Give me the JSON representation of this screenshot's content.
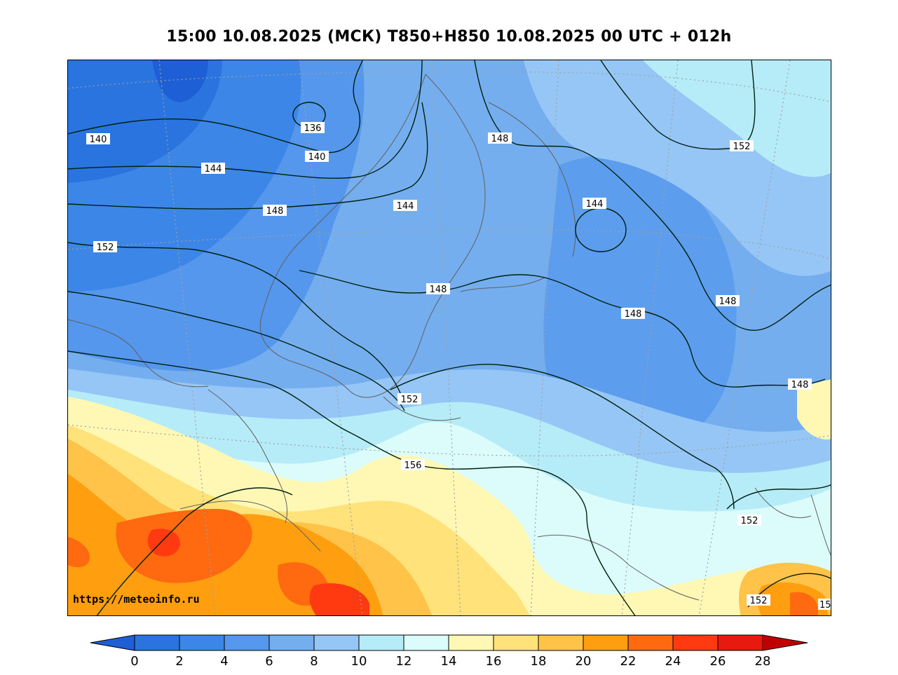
{
  "title": "15:00 10.08.2025 (МСК) T850+H850 10.08.2025 00 UTC + 012h",
  "watermark": "https://meteoinfo.ru",
  "colorbar": {
    "ticks": [
      "0",
      "2",
      "4",
      "6",
      "8",
      "10",
      "12",
      "14",
      "16",
      "18",
      "20",
      "22",
      "24",
      "26",
      "28"
    ],
    "under_color": "#1e5fd6",
    "colors": [
      "#2a74e0",
      "#3c86e8",
      "#5497ec",
      "#75aeef",
      "#96c6f5",
      "#b6ecf8",
      "#dcfcfc",
      "#fff7b4",
      "#ffe27a",
      "#ffc34a",
      "#ff9f10",
      "#ff6a10",
      "#ff3a10",
      "#e81a10"
    ],
    "over_color": "#c00000"
  },
  "contour_labels": [
    {
      "text": "136"
    },
    {
      "text": "140"
    },
    {
      "text": "140"
    },
    {
      "text": "144"
    },
    {
      "text": "144"
    },
    {
      "text": "144"
    },
    {
      "text": "148"
    },
    {
      "text": "148"
    },
    {
      "text": "148"
    },
    {
      "text": "148"
    },
    {
      "text": "148"
    },
    {
      "text": "148"
    },
    {
      "text": "152"
    },
    {
      "text": "152"
    },
    {
      "text": "152"
    },
    {
      "text": "152"
    },
    {
      "text": "152"
    },
    {
      "text": "156"
    },
    {
      "text": "15"
    }
  ]
}
